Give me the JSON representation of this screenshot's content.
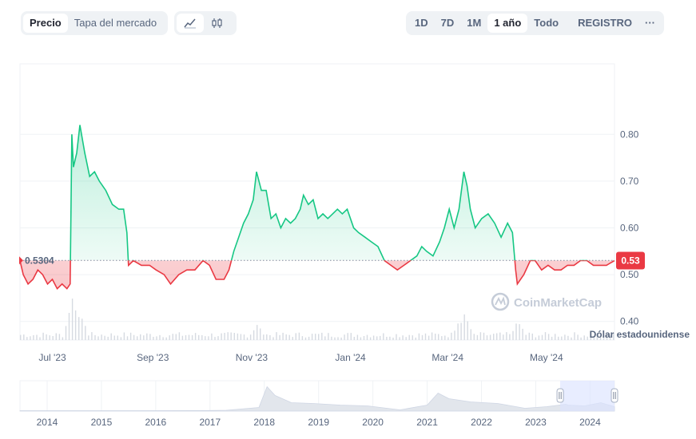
{
  "toolbar": {
    "tabs": [
      {
        "label": "Precio",
        "active": true
      },
      {
        "label": "Tapa del mercado",
        "active": false
      }
    ],
    "chart_types": [
      {
        "icon": "line-chart-icon",
        "active": true
      },
      {
        "icon": "candlestick-icon",
        "active": false
      }
    ],
    "ranges": [
      {
        "label": "1D",
        "active": false
      },
      {
        "label": "7D",
        "active": false
      },
      {
        "label": "1M",
        "active": false
      },
      {
        "label": "1 año",
        "active": true
      },
      {
        "label": "Todo",
        "active": false
      }
    ],
    "registro_label": "REGISTRO",
    "more_label": "···"
  },
  "currency_label": "Dólar estadounidense",
  "watermark": "CoinMarketCap",
  "baseline_label": "0.5304",
  "current_price_label": "0.53",
  "colors": {
    "up": "#16c784",
    "down": "#ea3943",
    "volume": "#d6dae1",
    "navigator_selection": "#dbe3ff"
  },
  "chart_data": {
    "type": "area",
    "baseline": 0.5304,
    "current": 0.53,
    "ylim": [
      0.35,
      0.9
    ],
    "yticks": [
      0.4,
      0.5,
      0.6,
      0.7,
      0.8
    ],
    "ytick_labels": [
      "0.40",
      "0.50",
      "0.60",
      "0.70",
      "0.80"
    ],
    "xlim": [
      "2023-06-11",
      "2024-06-12"
    ],
    "xticks": [
      {
        "label": "Jul '23",
        "date": "2023-07-01"
      },
      {
        "label": "Sep '23",
        "date": "2023-09-01"
      },
      {
        "label": "Nov '23",
        "date": "2023-11-01"
      },
      {
        "label": "Jan '24",
        "date": "2024-01-01"
      },
      {
        "label": "Mar '24",
        "date": "2024-03-01"
      },
      {
        "label": "May '24",
        "date": "2024-05-01"
      }
    ],
    "series": [
      {
        "points": [
          [
            "2023-06-11",
            0.53
          ],
          [
            "2023-06-13",
            0.5
          ],
          [
            "2023-06-16",
            0.48
          ],
          [
            "2023-06-19",
            0.49
          ],
          [
            "2023-06-22",
            0.51
          ],
          [
            "2023-06-25",
            0.5
          ],
          [
            "2023-06-28",
            0.48
          ],
          [
            "2023-07-01",
            0.49
          ],
          [
            "2023-07-04",
            0.47
          ],
          [
            "2023-07-07",
            0.48
          ],
          [
            "2023-07-10",
            0.47
          ],
          [
            "2023-07-12",
            0.48
          ],
          [
            "2023-07-13",
            0.8
          ],
          [
            "2023-07-14",
            0.73
          ],
          [
            "2023-07-16",
            0.76
          ],
          [
            "2023-07-18",
            0.82
          ],
          [
            "2023-07-21",
            0.76
          ],
          [
            "2023-07-24",
            0.71
          ],
          [
            "2023-07-27",
            0.72
          ],
          [
            "2023-07-30",
            0.7
          ],
          [
            "2023-08-03",
            0.68
          ],
          [
            "2023-08-07",
            0.65
          ],
          [
            "2023-08-11",
            0.64
          ],
          [
            "2023-08-14",
            0.64
          ],
          [
            "2023-08-16",
            0.59
          ],
          [
            "2023-08-17",
            0.52
          ],
          [
            "2023-08-20",
            0.53
          ],
          [
            "2023-08-25",
            0.52
          ],
          [
            "2023-08-30",
            0.52
          ],
          [
            "2023-09-03",
            0.51
          ],
          [
            "2023-09-08",
            0.5
          ],
          [
            "2023-09-12",
            0.48
          ],
          [
            "2023-09-17",
            0.5
          ],
          [
            "2023-09-22",
            0.51
          ],
          [
            "2023-09-27",
            0.51
          ],
          [
            "2023-10-02",
            0.53
          ],
          [
            "2023-10-06",
            0.52
          ],
          [
            "2023-10-10",
            0.49
          ],
          [
            "2023-10-15",
            0.49
          ],
          [
            "2023-10-18",
            0.51
          ],
          [
            "2023-10-21",
            0.55
          ],
          [
            "2023-10-24",
            0.58
          ],
          [
            "2023-10-27",
            0.61
          ],
          [
            "2023-10-30",
            0.63
          ],
          [
            "2023-11-02",
            0.66
          ],
          [
            "2023-11-04",
            0.72
          ],
          [
            "2023-11-07",
            0.68
          ],
          [
            "2023-11-10",
            0.68
          ],
          [
            "2023-11-13",
            0.62
          ],
          [
            "2023-11-16",
            0.63
          ],
          [
            "2023-11-19",
            0.6
          ],
          [
            "2023-11-22",
            0.62
          ],
          [
            "2023-11-25",
            0.61
          ],
          [
            "2023-11-28",
            0.62
          ],
          [
            "2023-12-01",
            0.64
          ],
          [
            "2023-12-03",
            0.67
          ],
          [
            "2023-12-06",
            0.65
          ],
          [
            "2023-12-09",
            0.66
          ],
          [
            "2023-12-12",
            0.62
          ],
          [
            "2023-12-15",
            0.63
          ],
          [
            "2023-12-18",
            0.62
          ],
          [
            "2023-12-21",
            0.63
          ],
          [
            "2023-12-24",
            0.64
          ],
          [
            "2023-12-27",
            0.63
          ],
          [
            "2023-12-30",
            0.64
          ],
          [
            "2024-01-03",
            0.6
          ],
          [
            "2024-01-06",
            0.59
          ],
          [
            "2024-01-10",
            0.58
          ],
          [
            "2024-01-14",
            0.57
          ],
          [
            "2024-01-18",
            0.56
          ],
          [
            "2024-01-22",
            0.53
          ],
          [
            "2024-01-26",
            0.52
          ],
          [
            "2024-01-30",
            0.51
          ],
          [
            "2024-02-03",
            0.52
          ],
          [
            "2024-02-07",
            0.53
          ],
          [
            "2024-02-11",
            0.54
          ],
          [
            "2024-02-14",
            0.56
          ],
          [
            "2024-02-17",
            0.55
          ],
          [
            "2024-02-21",
            0.54
          ],
          [
            "2024-02-25",
            0.57
          ],
          [
            "2024-02-28",
            0.6
          ],
          [
            "2024-03-02",
            0.64
          ],
          [
            "2024-03-05",
            0.6
          ],
          [
            "2024-03-08",
            0.64
          ],
          [
            "2024-03-11",
            0.72
          ],
          [
            "2024-03-13",
            0.69
          ],
          [
            "2024-03-15",
            0.64
          ],
          [
            "2024-03-18",
            0.6
          ],
          [
            "2024-03-22",
            0.62
          ],
          [
            "2024-03-26",
            0.63
          ],
          [
            "2024-03-30",
            0.61
          ],
          [
            "2024-04-03",
            0.58
          ],
          [
            "2024-04-07",
            0.61
          ],
          [
            "2024-04-10",
            0.59
          ],
          [
            "2024-04-12",
            0.51
          ],
          [
            "2024-04-13",
            0.48
          ],
          [
            "2024-04-17",
            0.5
          ],
          [
            "2024-04-21",
            0.53
          ],
          [
            "2024-04-24",
            0.53
          ],
          [
            "2024-04-28",
            0.51
          ],
          [
            "2024-05-02",
            0.52
          ],
          [
            "2024-05-06",
            0.51
          ],
          [
            "2024-05-10",
            0.51
          ],
          [
            "2024-05-14",
            0.52
          ],
          [
            "2024-05-18",
            0.52
          ],
          [
            "2024-05-22",
            0.53
          ],
          [
            "2024-05-26",
            0.53
          ],
          [
            "2024-05-30",
            0.52
          ],
          [
            "2024-06-03",
            0.52
          ],
          [
            "2024-06-07",
            0.52
          ],
          [
            "2024-06-12",
            0.53
          ]
        ]
      }
    ],
    "navigator": {
      "xlim": [
        2013.5,
        2024.45
      ],
      "labels": [
        "2014",
        "2015",
        "2016",
        "2017",
        "2018",
        "2019",
        "2020",
        "2021",
        "2022",
        "2023",
        "2024"
      ],
      "years": [
        2014,
        2015,
        2016,
        2017,
        2018,
        2019,
        2020,
        2021,
        2022,
        2023,
        2024
      ],
      "selection": [
        2023.45,
        2024.45
      ]
    }
  }
}
